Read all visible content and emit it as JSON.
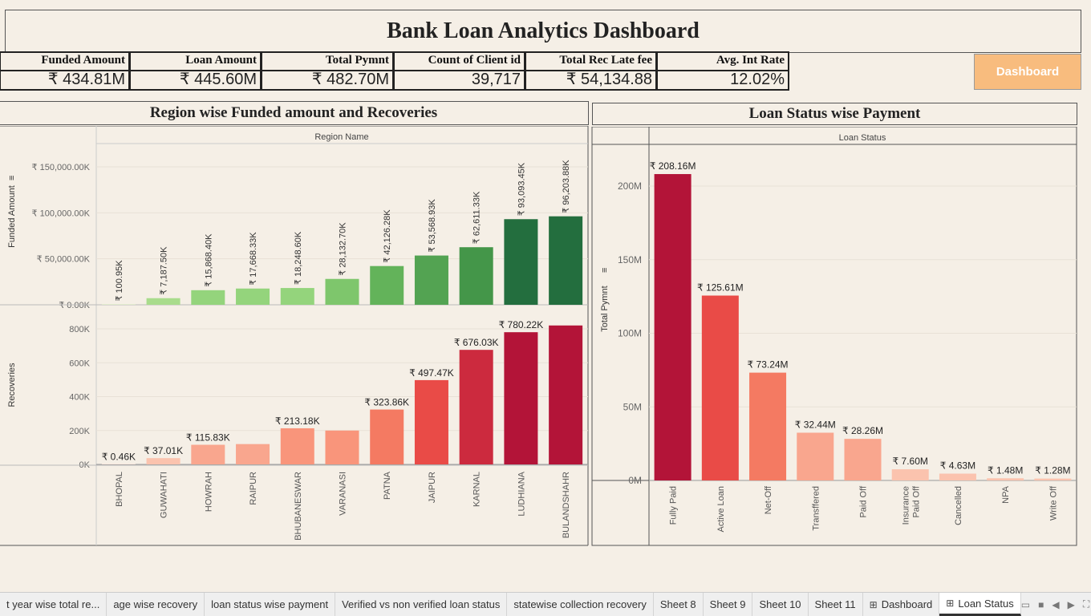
{
  "dashboard": {
    "title": "Bank Loan Analytics Dashboard",
    "button_label": "Dashboard"
  },
  "kpis": [
    {
      "label": "Funded Amount",
      "value": "₹ 434.81M"
    },
    {
      "label": "Loan Amount",
      "value": "₹ 445.60M"
    },
    {
      "label": "Total Pymnt",
      "value": "₹ 482.70M"
    },
    {
      "label": "Count of Client id",
      "value": "39,717"
    },
    {
      "label": "Total Rec Late fee",
      "value": "₹ 54,134.88"
    },
    {
      "label": "Avg. Int Rate",
      "value": "12.02%"
    }
  ],
  "region_chart": {
    "title": "Region wise Funded amount and Recoveries",
    "header": "Region Name"
  },
  "status_chart": {
    "title": "Loan Status wise Payment",
    "header": "Loan Status"
  },
  "tabs": [
    {
      "label": "t year wise total re...",
      "icon": ""
    },
    {
      "label": "age wise recovery",
      "icon": ""
    },
    {
      "label": "loan status wise payment",
      "icon": ""
    },
    {
      "label": "Verified vs non verified loan status",
      "icon": ""
    },
    {
      "label": "statewise collection recovery",
      "icon": ""
    },
    {
      "label": "Sheet 8",
      "icon": ""
    },
    {
      "label": "Sheet 9",
      "icon": ""
    },
    {
      "label": "Sheet 10",
      "icon": ""
    },
    {
      "label": "Sheet 11",
      "icon": ""
    },
    {
      "label": "Dashboard",
      "icon": "grid-icon"
    },
    {
      "label": "Loan Status",
      "icon": "grid-icon"
    }
  ],
  "chart_data": [
    {
      "type": "bar",
      "title": "Region wise Funded amount and Recoveries",
      "xlabel": "Region Name",
      "ylabel": "Funded Amount",
      "categories": [
        "BHOPAL",
        "GUWAHATI",
        "HOWRAH",
        "RAIPUR",
        "BHUBANESWAR",
        "VARANASI",
        "PATNA",
        "JAIPUR",
        "KARNAL",
        "LUDHIANA",
        "BULANDSHAHR"
      ],
      "values": [
        100.95,
        7187.5,
        15868.4,
        17668.33,
        18248.6,
        28132.7,
        42126.28,
        53568.93,
        62611.33,
        93093.45,
        96203.88
      ],
      "value_labels": [
        "₹ 100.95K",
        "₹ 7,187.50K",
        "₹ 15,868.40K",
        "₹ 17,668.33K",
        "₹ 18,248.60K",
        "₹ 28,132.70K",
        "₹ 42,126.28K",
        "₹ 53,568.93K",
        "₹ 62,611.33K",
        "₹ 93,093.45K",
        "₹ 96,203.88K"
      ],
      "unit": "K",
      "ylim": [
        0,
        160000
      ],
      "yticks": [
        0,
        50000,
        100000,
        150000
      ],
      "ytick_labels": [
        "₹ 0.00K",
        "₹ 50,000.00K",
        "₹ 100,000.00K",
        "₹ 150,000.00K"
      ],
      "colors": [
        "#cfe8b5",
        "#a9dc8c",
        "#94d47c",
        "#94d47c",
        "#94d47c",
        "#7ec66c",
        "#63b35a",
        "#53a352",
        "#449649",
        "#236e3e",
        "#236e3e"
      ]
    },
    {
      "type": "bar",
      "xlabel": "Region Name",
      "ylabel": "Recoveries",
      "categories": [
        "BHOPAL",
        "GUWAHATI",
        "HOWRAH",
        "RAIPUR",
        "BHUBANESWAR",
        "VARANASI",
        "PATNA",
        "JAIPUR",
        "KARNAL",
        "LUDHIANA",
        "BULANDSHAHR"
      ],
      "values": [
        0.46,
        37.01,
        115.83,
        120,
        213.18,
        200,
        323.86,
        497.47,
        676.03,
        780.22,
        820
      ],
      "value_labels": [
        "₹ 0.46K",
        "₹ 37.01K",
        "₹ 115.83K",
        "",
        "₹ 213.18K",
        "",
        "₹ 323.86K",
        "₹ 497.47K",
        "₹ 676.03K",
        "₹ 780.22K",
        ""
      ],
      "unit": "K",
      "ylim": [
        0,
        880
      ],
      "yticks": [
        0,
        200,
        400,
        600,
        800
      ],
      "ytick_labels": [
        "0K",
        "200K",
        "400K",
        "600K",
        "800K"
      ],
      "colors": [
        "#fde0d4",
        "#fbc3ae",
        "#f9a68e",
        "#f9a68e",
        "#f9957b",
        "#f9957b",
        "#f47a62",
        "#e94b47",
        "#cc2a3e",
        "#b31438",
        "#b31438"
      ]
    },
    {
      "type": "bar",
      "title": "Loan Status wise Payment",
      "xlabel": "Loan Status",
      "ylabel": "Total Pymnt",
      "categories": [
        "Fully Paid",
        "Active Loan",
        "Net-Off",
        "Transffered",
        "Paid Off",
        "Insurance Paid Off",
        "Cancelled",
        "NPA",
        "Write Off"
      ],
      "values": [
        208.16,
        125.61,
        73.24,
        32.44,
        28.26,
        7.6,
        4.63,
        1.48,
        1.28
      ],
      "value_labels": [
        "₹ 208.16M",
        "₹ 125.61M",
        "₹ 73.24M",
        "₹ 32.44M",
        "₹ 28.26M",
        "₹ 7.60M",
        "₹ 4.63M",
        "₹ 1.48M",
        "₹ 1.28M"
      ],
      "unit": "M",
      "ylim": [
        0,
        220
      ],
      "yticks": [
        0,
        50,
        100,
        150,
        200
      ],
      "ytick_labels": [
        "0M",
        "50M",
        "100M",
        "150M",
        "200M"
      ],
      "colors": [
        "#b31438",
        "#e94b47",
        "#f47a62",
        "#f9a68e",
        "#f9a68e",
        "#fbc3ae",
        "#fbc3ae",
        "#fbc3ae",
        "#fbc3ae"
      ]
    }
  ]
}
